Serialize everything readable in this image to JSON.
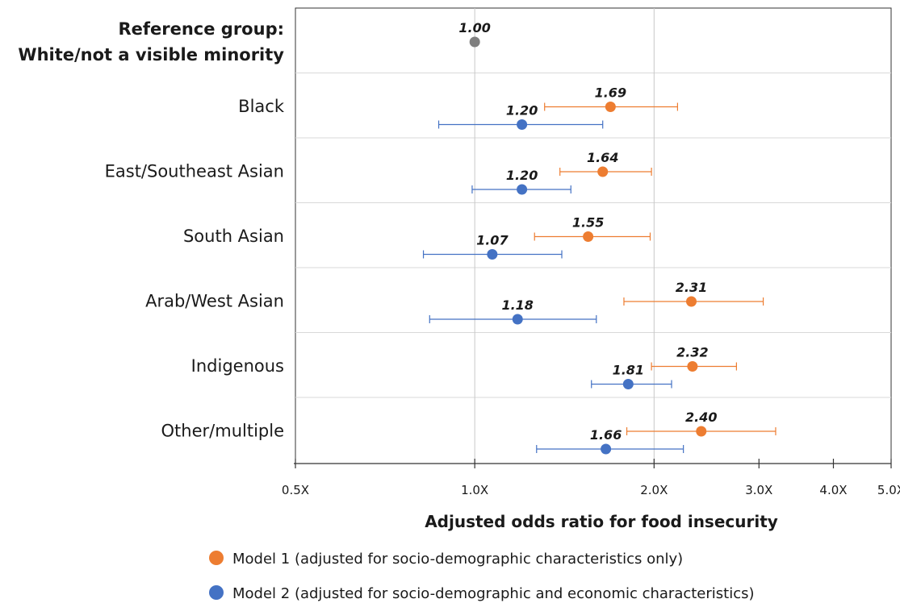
{
  "chart_data": {
    "type": "scatter",
    "subtype": "forest-plot",
    "xscale": "log",
    "xlim": [
      0.5,
      5.0
    ],
    "xticks": [
      0.5,
      1.0,
      2.0,
      3.0,
      4.0,
      5.0
    ],
    "xtick_labels": [
      "0.5X",
      "1.0X",
      "2.0X",
      "3.0X",
      "4.0X",
      "5.0X"
    ],
    "xlabel": "Adjusted odds ratio for food insecurity",
    "grid": "vertical lines at 1.0X and 2.0X",
    "reference": {
      "label_lines": [
        "Reference group:",
        "White/not a visible minority"
      ],
      "value": 1.0,
      "value_label": "1.00",
      "color": "#7f7f7f"
    },
    "categories": [
      "Black",
      "East/Southeast Asian",
      "South Asian",
      "Arab/West Asian",
      "Indigenous",
      "Other/multiple"
    ],
    "series": [
      {
        "name": "Model 1 (adjusted for socio-demographic characteristics only)",
        "color": "#ed7d31",
        "values": [
          1.69,
          1.64,
          1.55,
          2.31,
          2.32,
          2.4
        ],
        "value_labels": [
          "1.69",
          "1.64",
          "1.55",
          "2.31",
          "2.32",
          "2.40"
        ],
        "ci_low": [
          1.31,
          1.39,
          1.26,
          1.78,
          1.98,
          1.8
        ],
        "ci_high": [
          2.19,
          1.98,
          1.97,
          3.05,
          2.75,
          3.2
        ]
      },
      {
        "name": "Model 2 (adjusted for socio-demographic and economic characteristics)",
        "color": "#4472c4",
        "values": [
          1.2,
          1.2,
          1.07,
          1.18,
          1.81,
          1.66
        ],
        "value_labels": [
          "1.20",
          "1.20",
          "1.07",
          "1.18",
          "1.81",
          "1.66"
        ],
        "ci_low": [
          0.87,
          0.99,
          0.82,
          0.84,
          1.57,
          1.27
        ],
        "ci_high": [
          1.64,
          1.45,
          1.4,
          1.6,
          2.14,
          2.24
        ]
      }
    ],
    "legend": "bottom-center"
  }
}
